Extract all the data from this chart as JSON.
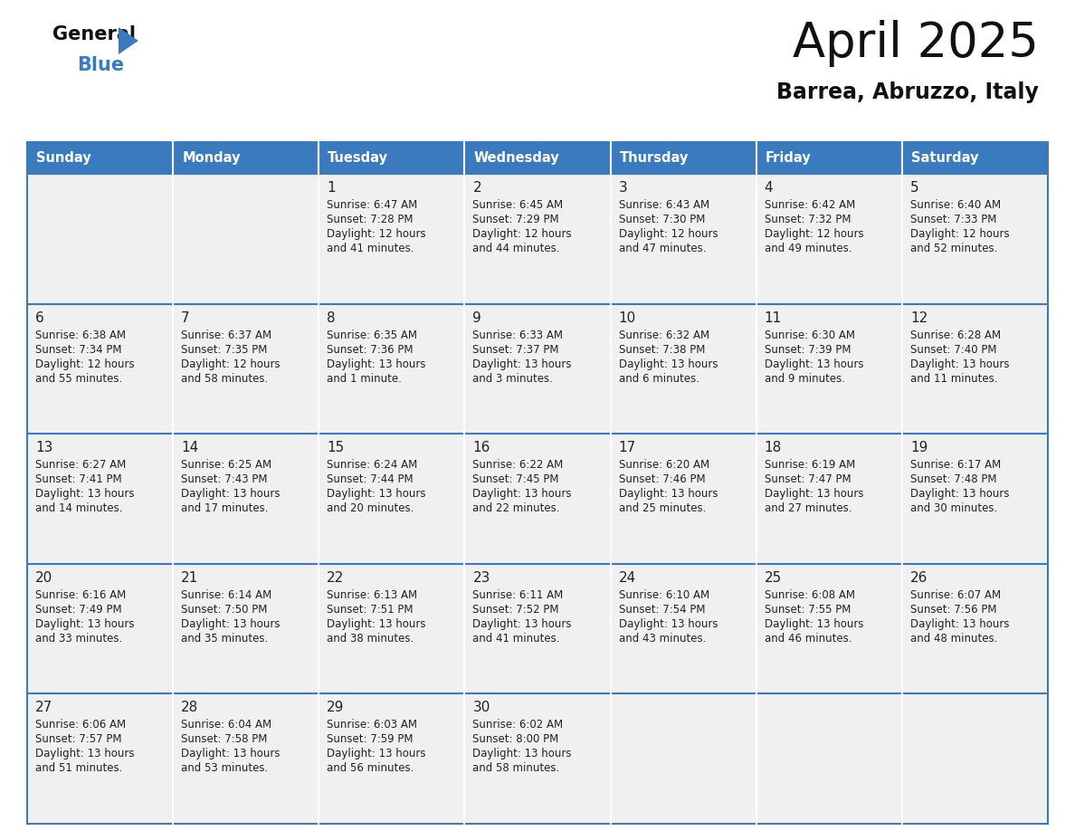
{
  "title": "April 2025",
  "subtitle": "Barrea, Abruzzo, Italy",
  "header_bg_color": "#3a7bbf",
  "header_text_color": "#ffffff",
  "cell_bg_color": "#f0f0f0",
  "row_sep_color": "#3a7bbf",
  "col_sep_color": "#ffffff",
  "text_color": "#222222",
  "day_names": [
    "Sunday",
    "Monday",
    "Tuesday",
    "Wednesday",
    "Thursday",
    "Friday",
    "Saturday"
  ],
  "days": [
    {
      "day": 1,
      "col": 2,
      "row": 0,
      "sunrise": "6:47 AM",
      "sunset": "7:28 PM",
      "daylight_line1": "Daylight: 12 hours",
      "daylight_line2": "and 41 minutes."
    },
    {
      "day": 2,
      "col": 3,
      "row": 0,
      "sunrise": "6:45 AM",
      "sunset": "7:29 PM",
      "daylight_line1": "Daylight: 12 hours",
      "daylight_line2": "and 44 minutes."
    },
    {
      "day": 3,
      "col": 4,
      "row": 0,
      "sunrise": "6:43 AM",
      "sunset": "7:30 PM",
      "daylight_line1": "Daylight: 12 hours",
      "daylight_line2": "and 47 minutes."
    },
    {
      "day": 4,
      "col": 5,
      "row": 0,
      "sunrise": "6:42 AM",
      "sunset": "7:32 PM",
      "daylight_line1": "Daylight: 12 hours",
      "daylight_line2": "and 49 minutes."
    },
    {
      "day": 5,
      "col": 6,
      "row": 0,
      "sunrise": "6:40 AM",
      "sunset": "7:33 PM",
      "daylight_line1": "Daylight: 12 hours",
      "daylight_line2": "and 52 minutes."
    },
    {
      "day": 6,
      "col": 0,
      "row": 1,
      "sunrise": "6:38 AM",
      "sunset": "7:34 PM",
      "daylight_line1": "Daylight: 12 hours",
      "daylight_line2": "and 55 minutes."
    },
    {
      "day": 7,
      "col": 1,
      "row": 1,
      "sunrise": "6:37 AM",
      "sunset": "7:35 PM",
      "daylight_line1": "Daylight: 12 hours",
      "daylight_line2": "and 58 minutes."
    },
    {
      "day": 8,
      "col": 2,
      "row": 1,
      "sunrise": "6:35 AM",
      "sunset": "7:36 PM",
      "daylight_line1": "Daylight: 13 hours",
      "daylight_line2": "and 1 minute."
    },
    {
      "day": 9,
      "col": 3,
      "row": 1,
      "sunrise": "6:33 AM",
      "sunset": "7:37 PM",
      "daylight_line1": "Daylight: 13 hours",
      "daylight_line2": "and 3 minutes."
    },
    {
      "day": 10,
      "col": 4,
      "row": 1,
      "sunrise": "6:32 AM",
      "sunset": "7:38 PM",
      "daylight_line1": "Daylight: 13 hours",
      "daylight_line2": "and 6 minutes."
    },
    {
      "day": 11,
      "col": 5,
      "row": 1,
      "sunrise": "6:30 AM",
      "sunset": "7:39 PM",
      "daylight_line1": "Daylight: 13 hours",
      "daylight_line2": "and 9 minutes."
    },
    {
      "day": 12,
      "col": 6,
      "row": 1,
      "sunrise": "6:28 AM",
      "sunset": "7:40 PM",
      "daylight_line1": "Daylight: 13 hours",
      "daylight_line2": "and 11 minutes."
    },
    {
      "day": 13,
      "col": 0,
      "row": 2,
      "sunrise": "6:27 AM",
      "sunset": "7:41 PM",
      "daylight_line1": "Daylight: 13 hours",
      "daylight_line2": "and 14 minutes."
    },
    {
      "day": 14,
      "col": 1,
      "row": 2,
      "sunrise": "6:25 AM",
      "sunset": "7:43 PM",
      "daylight_line1": "Daylight: 13 hours",
      "daylight_line2": "and 17 minutes."
    },
    {
      "day": 15,
      "col": 2,
      "row": 2,
      "sunrise": "6:24 AM",
      "sunset": "7:44 PM",
      "daylight_line1": "Daylight: 13 hours",
      "daylight_line2": "and 20 minutes."
    },
    {
      "day": 16,
      "col": 3,
      "row": 2,
      "sunrise": "6:22 AM",
      "sunset": "7:45 PM",
      "daylight_line1": "Daylight: 13 hours",
      "daylight_line2": "and 22 minutes."
    },
    {
      "day": 17,
      "col": 4,
      "row": 2,
      "sunrise": "6:20 AM",
      "sunset": "7:46 PM",
      "daylight_line1": "Daylight: 13 hours",
      "daylight_line2": "and 25 minutes."
    },
    {
      "day": 18,
      "col": 5,
      "row": 2,
      "sunrise": "6:19 AM",
      "sunset": "7:47 PM",
      "daylight_line1": "Daylight: 13 hours",
      "daylight_line2": "and 27 minutes."
    },
    {
      "day": 19,
      "col": 6,
      "row": 2,
      "sunrise": "6:17 AM",
      "sunset": "7:48 PM",
      "daylight_line1": "Daylight: 13 hours",
      "daylight_line2": "and 30 minutes."
    },
    {
      "day": 20,
      "col": 0,
      "row": 3,
      "sunrise": "6:16 AM",
      "sunset": "7:49 PM",
      "daylight_line1": "Daylight: 13 hours",
      "daylight_line2": "and 33 minutes."
    },
    {
      "day": 21,
      "col": 1,
      "row": 3,
      "sunrise": "6:14 AM",
      "sunset": "7:50 PM",
      "daylight_line1": "Daylight: 13 hours",
      "daylight_line2": "and 35 minutes."
    },
    {
      "day": 22,
      "col": 2,
      "row": 3,
      "sunrise": "6:13 AM",
      "sunset": "7:51 PM",
      "daylight_line1": "Daylight: 13 hours",
      "daylight_line2": "and 38 minutes."
    },
    {
      "day": 23,
      "col": 3,
      "row": 3,
      "sunrise": "6:11 AM",
      "sunset": "7:52 PM",
      "daylight_line1": "Daylight: 13 hours",
      "daylight_line2": "and 41 minutes."
    },
    {
      "day": 24,
      "col": 4,
      "row": 3,
      "sunrise": "6:10 AM",
      "sunset": "7:54 PM",
      "daylight_line1": "Daylight: 13 hours",
      "daylight_line2": "and 43 minutes."
    },
    {
      "day": 25,
      "col": 5,
      "row": 3,
      "sunrise": "6:08 AM",
      "sunset": "7:55 PM",
      "daylight_line1": "Daylight: 13 hours",
      "daylight_line2": "and 46 minutes."
    },
    {
      "day": 26,
      "col": 6,
      "row": 3,
      "sunrise": "6:07 AM",
      "sunset": "7:56 PM",
      "daylight_line1": "Daylight: 13 hours",
      "daylight_line2": "and 48 minutes."
    },
    {
      "day": 27,
      "col": 0,
      "row": 4,
      "sunrise": "6:06 AM",
      "sunset": "7:57 PM",
      "daylight_line1": "Daylight: 13 hours",
      "daylight_line2": "and 51 minutes."
    },
    {
      "day": 28,
      "col": 1,
      "row": 4,
      "sunrise": "6:04 AM",
      "sunset": "7:58 PM",
      "daylight_line1": "Daylight: 13 hours",
      "daylight_line2": "and 53 minutes."
    },
    {
      "day": 29,
      "col": 2,
      "row": 4,
      "sunrise": "6:03 AM",
      "sunset": "7:59 PM",
      "daylight_line1": "Daylight: 13 hours",
      "daylight_line2": "and 56 minutes."
    },
    {
      "day": 30,
      "col": 3,
      "row": 4,
      "sunrise": "6:02 AM",
      "sunset": "8:00 PM",
      "daylight_line1": "Daylight: 13 hours",
      "daylight_line2": "and 58 minutes."
    }
  ],
  "num_rows": 5,
  "num_cols": 7
}
